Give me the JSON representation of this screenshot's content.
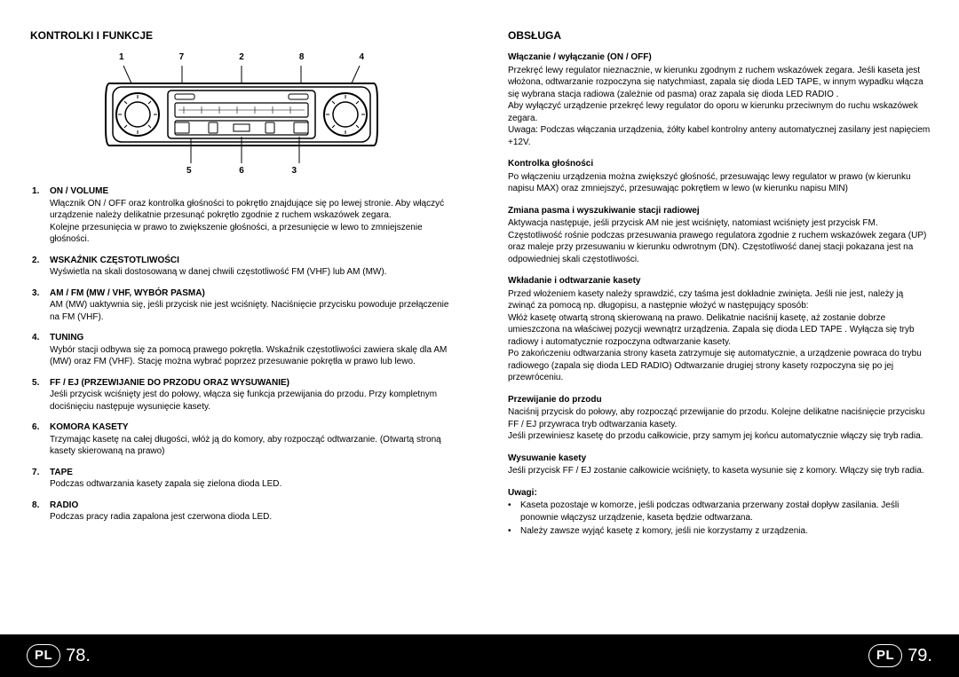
{
  "left": {
    "title": "KONTROLKI I FUNKCJE",
    "diagram": {
      "top_labels": [
        "1",
        "7",
        "2",
        "8",
        "4"
      ],
      "bottom_labels": [
        "5",
        "6",
        "3"
      ],
      "stroke": "#000000",
      "fill": "#ffffff"
    },
    "features": [
      {
        "title": "ON / VOLUME",
        "body": "Włącznik ON / OFF oraz kontrolka głośności to pokrętło znajdujące się po lewej stronie. Aby włączyć urządzenie należy delikatnie przesunąć pokrętło zgodnie z ruchem wskazówek zegara.\nKolejne przesunięcia w prawo to zwiększenie  głośności, a przesunięcie w lewo to zmniejszenie głośności."
      },
      {
        "title": "WSKAŹNIK CZĘSTOTLIWOŚCI",
        "body": "Wyświetla na skali dostosowaną w danej chwili częstotliwość FM (VHF) lub AM (MW)."
      },
      {
        "title": "AM / FM (MW / VHF, WYBÓR PASMA)",
        "body": "AM (MW) uaktywnia się, jeśli przycisk nie jest wciśnięty. Naciśnięcie przycisku powoduje przełączenie na FM (VHF)."
      },
      {
        "title": "TUNING",
        "body": "Wybór stacji odbywa się za pomocą prawego pokrętła. Wskaźnik częstotliwości zawiera skalę dla AM (MW) oraz FM (VHF). Stację można wybrać poprzez przesuwanie pokrętła w prawo lub lewo."
      },
      {
        "title": "FF / EJ (PRZEWIJANIE DO PRZODU ORAZ WYSUWANIE)",
        "body": "Jeśli przycisk wciśnięty jest do połowy, włącza się funkcja przewijania do przodu. Przy kompletnym dociśnięciu następuje wysunięcie kasety."
      },
      {
        "title": "KOMORA KASETY",
        "body": "Trzymając kasetę na całej długości, włóż ją do komory, aby rozpocząć odtwarzanie. (Otwartą stroną kasety skierowaną na prawo)"
      },
      {
        "title": "TAPE",
        "body": "Podczas odtwarzania kasety zapala się zielona dioda LED."
      },
      {
        "title": "RADIO",
        "body": "Podczas pracy radia zapalona jest czerwona dioda LED."
      }
    ]
  },
  "right": {
    "title": "OBSŁUGA",
    "sections": [
      {
        "title": "Włączanie / wyłączanie (ON / OFF)",
        "body": "Przekręć lewy regulator nieznacznie, w kierunku zgodnym z ruchem wskazówek zegara. Jeśli kaseta jest włożona, odtwarzanie rozpoczyna się natychmiast, zapala się dioda LED TAPE, w innym wypadku włącza się wybrana stacja radiowa (zależnie od pasma) oraz zapala się dioda LED RADIO .\nAby wyłączyć urządzenie przekręć lewy regulator do oporu w kierunku przeciwnym do ruchu wskazówek zegara.\nUwaga: Podczas włączania urządzenia, żółty kabel kontrolny anteny automatycznej zasilany jest napięciem +12V."
      },
      {
        "title": "Kontrolka głośności",
        "body": "Po włączeniu urządzenia można zwiększyć głośność, przesuwając lewy regulator w prawo (w kierunku napisu MAX) oraz zmniejszyć, przesuwając pokrętłem w lewo (w kierunku napisu MIN)"
      },
      {
        "title": "Zmiana pasma i wyszukiwanie stacji radiowej",
        "body": "Aktywacja następuje, jeśli przycisk AM nie jest wciśnięty, natomiast wciśnięty jest przycisk FM. Częstotliwość rośnie podczas przesuwania prawego regulatora zgodnie z ruchem wskazówek zegara (UP) oraz maleje przy przesuwaniu w kierunku odwrotnym (DN). Częstotliwość danej stacji pokazana jest na odpowiedniej skali częstotliwości."
      },
      {
        "title": "Wkładanie i odtwarzanie kasety",
        "body": "Przed włożeniem kasety należy sprawdzić, czy taśma jest dokładnie zwinięta. Jeśli nie jest, należy ją zwinąć za pomocą np. długopisu, a następnie włożyć w następujący sposób:\nWłóż kasetę otwartą stroną skierowaną na prawo. Delikatnie naciśnij kasetę, aż zostanie dobrze umieszczona na właściwej pozycji wewnątrz urządzenia. Zapala się dioda LED TAPE . Wyłącza się tryb radiowy i automatycznie rozpoczyna odtwarzanie kasety.\nPo zakończeniu odtwarzania strony kaseta zatrzymuje się automatycznie, a urządzenie powraca do trybu radiowego (zapala się dioda LED RADIO) Odtwarzanie drugiej strony kasety rozpoczyna się po jej przewróceniu."
      },
      {
        "title": "Przewijanie do przodu",
        "body": "Naciśnij przycisk do połowy, aby rozpocząć przewijanie do przodu. Kolejne delikatne naciśnięcie przycisku FF / EJ przywraca tryb odtwarzania kasety.\nJeśli przewiniesz kasetę do przodu całkowicie, przy samym jej końcu automatycznie włączy się tryb radia."
      },
      {
        "title": "Wysuwanie kasety",
        "body": "Jeśli przycisk FF / EJ zostanie całkowicie wciśnięty, to kaseta wysunie się z komory. Włączy się tryb radia."
      }
    ],
    "notes_title": "Uwagi:",
    "notes": [
      "Kaseta pozostaje w komorze, jeśli podczas odtwarzania przerwany został dopływ zasilania. Jeśli ponownie włączysz urządzenie, kaseta będzie odtwarzana.",
      "Należy zawsze wyjąć kasetę z komory, jeśli nie korzystamy z urządzenia."
    ]
  },
  "footer": {
    "badge": "PL",
    "left_page": "78.",
    "right_page": "79."
  },
  "colors": {
    "page_bg": "#ffffff",
    "text": "#000000",
    "footer_bg": "#000000",
    "footer_text": "#ffffff"
  }
}
